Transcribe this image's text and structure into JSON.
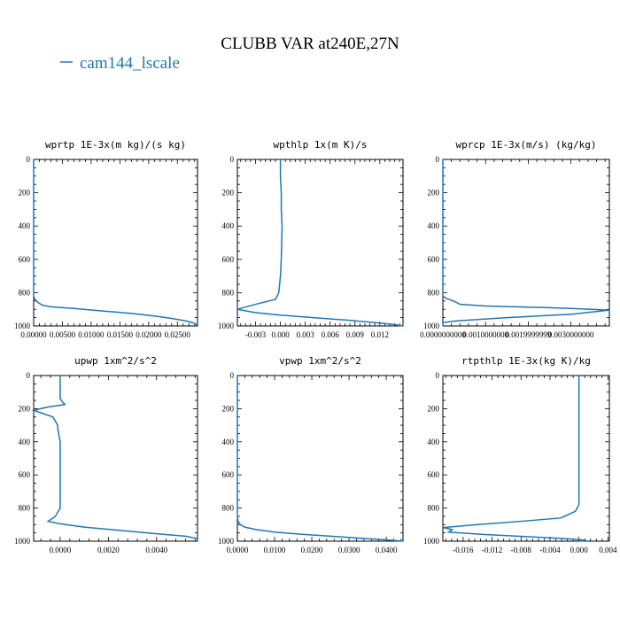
{
  "title": "CLUBB VAR at240E,27N",
  "legend": [
    {
      "label": "cam144_lscale",
      "color": "#1f77b4"
    }
  ],
  "colors": {
    "series": "#1f77b4",
    "frame": "#000000"
  },
  "chart_data": [
    {
      "type": "line",
      "title": "wprtp  1E-3x(m kg)/(s kg)",
      "xlim": [
        0.0,
        0.0285
      ],
      "ylim": [
        1000,
        0
      ],
      "xticks": [
        0.0,
        0.005,
        0.01,
        0.015,
        0.02,
        0.025
      ],
      "xtick_labels": [
        "0.00000",
        "0.00500",
        "0.01000",
        "0.01500",
        "0.02000",
        "0.02500"
      ],
      "yticks": [
        0,
        200,
        400,
        600,
        800,
        1000
      ],
      "ytick_labels": [
        "0",
        "200",
        "400",
        "600",
        "800",
        "1000"
      ],
      "series": [
        {
          "x": [
            0.0,
            0.0,
            0.0002,
            0.0008,
            0.0015,
            0.003,
            0.007,
            0.012,
            0.017,
            0.021,
            0.024,
            0.0265,
            0.0278,
            0.0285
          ],
          "y": [
            0,
            820,
            840,
            860,
            875,
            885,
            895,
            910,
            925,
            940,
            955,
            970,
            982,
            995
          ]
        }
      ]
    },
    {
      "type": "line",
      "title": "wpthlp  1x(m K)/s",
      "xlim": [
        -0.0052,
        0.0148
      ],
      "ylim": [
        1000,
        0
      ],
      "xticks": [
        -0.003,
        0.0,
        0.003,
        0.006,
        0.009,
        0.012
      ],
      "xtick_labels": [
        "-0.003",
        "0.000",
        "0.003",
        "0.006",
        "0.009",
        "0.012"
      ],
      "yticks": [
        0,
        200,
        400,
        600,
        800,
        1000
      ],
      "ytick_labels": [
        "0",
        "200",
        "400",
        "600",
        "800",
        "1000"
      ],
      "series": [
        {
          "x": [
            0.0,
            0.0,
            0.0001,
            0.0001,
            0.0002,
            0.0001,
            0.0,
            -0.0002,
            -0.0006,
            -0.003,
            -0.0052,
            -0.003,
            0.0,
            0.004,
            0.008,
            0.011,
            0.0135,
            0.0148
          ],
          "y": [
            0,
            100,
            200,
            300,
            400,
            600,
            700,
            800,
            840,
            870,
            900,
            920,
            935,
            950,
            965,
            978,
            990,
            1000
          ]
        }
      ]
    },
    {
      "type": "line",
      "title": "wprcp  1E-3x(m/s) (kg/kg)",
      "xlim": [
        0.0,
        0.0039
      ],
      "ylim": [
        1000,
        0
      ],
      "xticks": [
        0.0,
        0.001,
        0.002,
        0.003
      ],
      "xtick_labels": [
        "0.0000000000",
        "0.0010000000",
        "0.0019999999",
        "0.0030000000"
      ],
      "yticks": [
        0,
        200,
        400,
        600,
        800,
        1000
      ],
      "ytick_labels": [
        "0",
        "200",
        "400",
        "600",
        "800",
        "1000"
      ],
      "series": [
        {
          "x": [
            0.0,
            0.0,
            8e-05,
            0.00025,
            0.0004,
            0.001,
            0.0025,
            0.0039,
            0.003,
            0.0015,
            0.0003,
            0.0,
            0.0
          ],
          "y": [
            0,
            820,
            835,
            850,
            870,
            880,
            890,
            905,
            930,
            950,
            970,
            980,
            1000
          ]
        }
      ]
    },
    {
      "type": "line",
      "title": "upwp  1xm^2/s^2",
      "xlim": [
        -0.0011,
        0.0057
      ],
      "ylim": [
        1000,
        0
      ],
      "xticks": [
        0.0,
        0.002,
        0.004
      ],
      "xtick_labels": [
        "0.0000",
        "0.0020",
        "0.0040"
      ],
      "yticks": [
        0,
        200,
        400,
        600,
        800,
        1000
      ],
      "ytick_labels": [
        "0",
        "200",
        "400",
        "600",
        "800",
        "1000"
      ],
      "series": [
        {
          "x": [
            0.0,
            0.0,
            0.0001,
            0.0002,
            -0.0005,
            -0.0011,
            -0.0003,
            -0.0001,
            -0.0001,
            0.0,
            0.0,
            0.0,
            -0.0002,
            -0.0005,
            0.0,
            0.001,
            0.0025,
            0.004,
            0.0052,
            0.0057
          ],
          "y": [
            0,
            140,
            160,
            175,
            190,
            210,
            250,
            300,
            320,
            400,
            600,
            800,
            850,
            880,
            895,
            915,
            935,
            955,
            970,
            985
          ]
        }
      ]
    },
    {
      "type": "line",
      "title": "vpwp  1xm^2/s^2",
      "xlim": [
        0.0,
        0.0445
      ],
      "ylim": [
        1000,
        0
      ],
      "xticks": [
        0.0,
        0.01,
        0.02,
        0.03,
        0.04
      ],
      "xtick_labels": [
        "0.0000",
        "0.0100",
        "0.0200",
        "0.0300",
        "0.0400"
      ],
      "yticks": [
        0,
        200,
        400,
        600,
        800,
        1000
      ],
      "ytick_labels": [
        "0",
        "200",
        "400",
        "600",
        "800",
        "1000"
      ],
      "series": [
        {
          "x": [
            0.0,
            0.0,
            0.0002,
            0.0008,
            0.002,
            0.005,
            0.01,
            0.017,
            0.025,
            0.033,
            0.04,
            0.0445
          ],
          "y": [
            0,
            850,
            880,
            900,
            915,
            930,
            945,
            958,
            970,
            982,
            992,
            1000
          ]
        }
      ]
    },
    {
      "type": "line",
      "title": "rtpthlp  1E-3x(kg K)/kg",
      "xlim": [
        -0.0188,
        0.0042
      ],
      "ylim": [
        1000,
        0
      ],
      "xticks": [
        -0.016,
        -0.012,
        -0.008,
        -0.004,
        0.0,
        0.004
      ],
      "xtick_labels": [
        "-0.016",
        "-0.012",
        "-0.008",
        "-0.004",
        "0.000",
        "0.004"
      ],
      "yticks": [
        0,
        200,
        400,
        600,
        800,
        1000
      ],
      "ytick_labels": [
        "0",
        "200",
        "400",
        "600",
        "800",
        "1000"
      ],
      "series": [
        {
          "x": [
            0.0,
            0.0,
            0.0,
            -0.0005,
            -0.0025,
            -0.008,
            -0.014,
            -0.0188,
            -0.0175,
            -0.018,
            -0.013,
            -0.006,
            -0.001,
            0.001,
            0.0
          ],
          "y": [
            0,
            600,
            780,
            820,
            860,
            880,
            900,
            918,
            930,
            945,
            960,
            975,
            987,
            995,
            1000
          ]
        }
      ]
    }
  ]
}
